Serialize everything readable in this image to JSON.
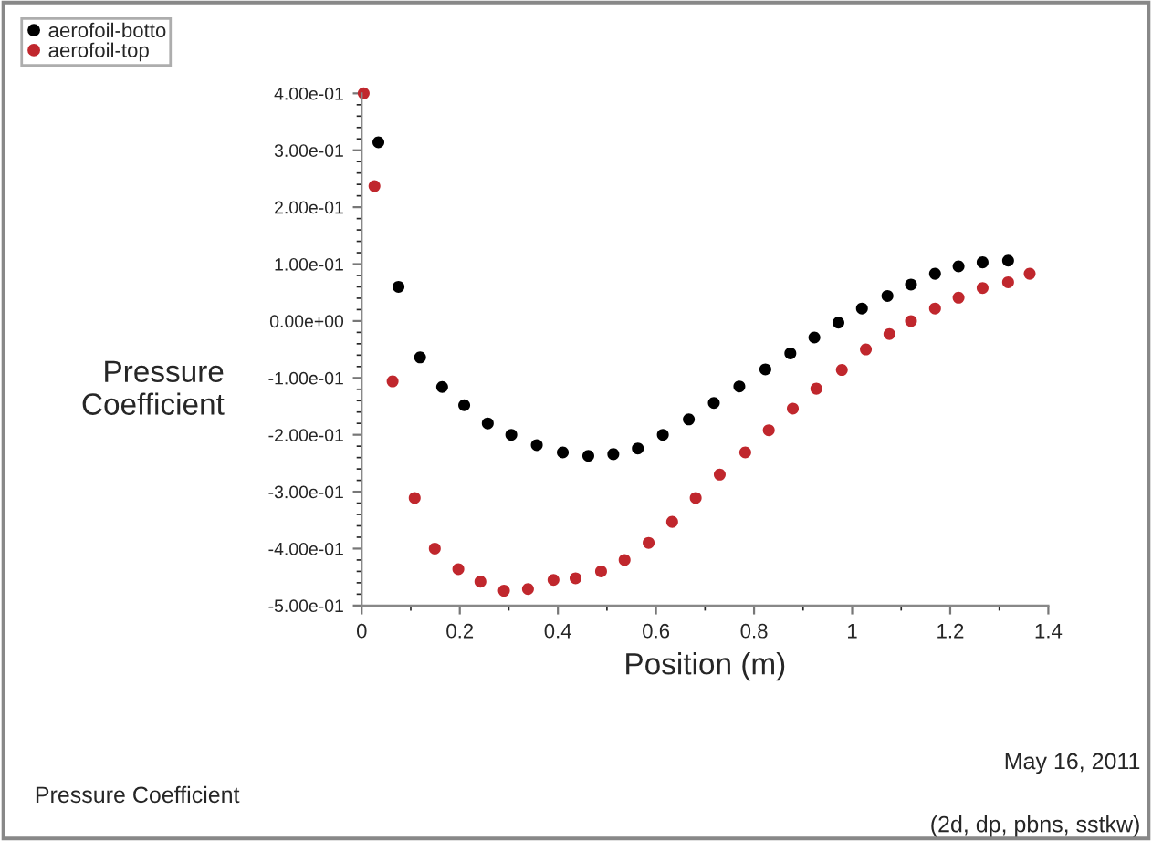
{
  "chart_data": {
    "type": "scatter",
    "xlabel": "Position (m)",
    "ylabel": "Pressure\nCoefficient",
    "series": [
      {
        "name": "aerofoil-botto",
        "color": "#000000",
        "x": [
          0.034,
          0.075,
          0.119,
          0.164,
          0.209,
          0.257,
          0.305,
          0.357,
          0.41,
          0.462,
          0.513,
          0.563,
          0.614,
          0.667,
          0.718,
          0.77,
          0.823,
          0.874,
          0.923,
          0.972,
          1.02,
          1.072,
          1.12,
          1.169,
          1.217,
          1.266,
          1.318
        ],
        "values": [
          0.314,
          0.06,
          -0.064,
          -0.116,
          -0.148,
          -0.18,
          -0.2,
          -0.218,
          -0.231,
          -0.237,
          -0.234,
          -0.224,
          -0.2,
          -0.173,
          -0.144,
          -0.115,
          -0.085,
          -0.057,
          -0.029,
          -0.003,
          0.022,
          0.044,
          0.064,
          0.083,
          0.096,
          0.103,
          0.106
        ]
      },
      {
        "name": "aerofoil-top",
        "color": "#c0272d",
        "x": [
          0.004,
          0.026,
          0.063,
          0.108,
          0.149,
          0.197,
          0.242,
          0.29,
          0.339,
          0.391,
          0.436,
          0.488,
          0.536,
          0.585,
          0.633,
          0.681,
          0.73,
          0.782,
          0.83,
          0.879,
          0.927,
          0.979,
          1.028,
          1.076,
          1.12,
          1.169,
          1.217,
          1.266,
          1.318,
          1.362
        ],
        "values": [
          0.4,
          0.237,
          -0.106,
          -0.311,
          -0.4,
          -0.436,
          -0.458,
          -0.474,
          -0.471,
          -0.455,
          -0.452,
          -0.44,
          -0.42,
          -0.39,
          -0.353,
          -0.311,
          -0.27,
          -0.231,
          -0.192,
          -0.154,
          -0.119,
          -0.086,
          -0.05,
          -0.023,
          0.0,
          0.022,
          0.041,
          0.058,
          0.068,
          0.083
        ]
      }
    ],
    "xlim": [
      0,
      1.4
    ],
    "xticks": [
      0,
      0.2,
      0.4,
      0.6,
      0.8,
      1,
      1.2,
      1.4
    ],
    "ylim": [
      -0.5,
      0.4
    ],
    "yticks": [
      {
        "value": 0.4,
        "label": "4.00e-01"
      },
      {
        "value": 0.3,
        "label": "3.00e-01"
      },
      {
        "value": 0.2,
        "label": "2.00e-01"
      },
      {
        "value": 0.1,
        "label": "1.00e-01"
      },
      {
        "value": 0,
        "label": "0.00e+00"
      },
      {
        "value": -0.1,
        "label": "-1.00e-01"
      },
      {
        "value": -0.2,
        "label": "-2.00e-01"
      },
      {
        "value": -0.3,
        "label": "-3.00e-01"
      },
      {
        "value": -0.4,
        "label": "-4.00e-01"
      },
      {
        "value": -0.5,
        "label": "-5.00e-01"
      }
    ],
    "marker": "circle",
    "legend": "top left",
    "grid": false,
    "annotations": [
      "Pressure Coefficient",
      "May 16, 2011",
      "(2d, dp, pbns, sstkw)"
    ]
  }
}
